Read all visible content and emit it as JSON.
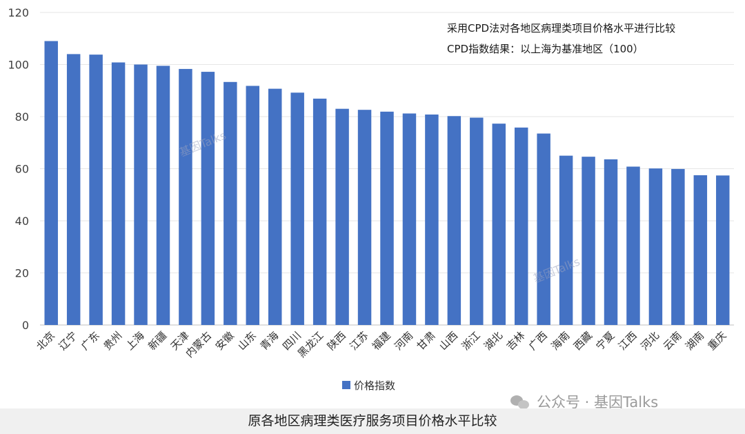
{
  "chart_data": {
    "type": "bar",
    "categories": [
      "北京",
      "辽宁",
      "广东",
      "贵州",
      "上海",
      "新疆",
      "天津",
      "内蒙古",
      "安徽",
      "山东",
      "青海",
      "四川",
      "黑龙江",
      "陕西",
      "江苏",
      "福建",
      "河南",
      "甘肃",
      "山西",
      "浙江",
      "湖北",
      "吉林",
      "广西",
      "海南",
      "西藏",
      "宁夏",
      "江西",
      "河北",
      "云南",
      "湖南",
      "重庆"
    ],
    "series": [
      {
        "name": "价格指数",
        "values": [
          109,
          104,
          103.8,
          100.8,
          100,
          99.5,
          98.3,
          97.2,
          93.3,
          91.8,
          90.7,
          89.2,
          86.9,
          83,
          82.6,
          81.9,
          81.2,
          80.8,
          80.2,
          79.6,
          77.3,
          75.8,
          73.5,
          65,
          64.6,
          63.6,
          60.8,
          60.1,
          59.9,
          57.5,
          57.4
        ],
        "color": "#4472c4"
      }
    ],
    "ylim": [
      0,
      120
    ],
    "yticks": [
      0,
      20,
      40,
      60,
      80,
      100,
      120
    ],
    "grid": true,
    "legend": "bottom",
    "annotations": [
      "采用CPD法对各地区病理类项目价格水平进行比较",
      "CPD指数结果：以上海为基准地区（100）"
    ],
    "watermarks": [
      "基因Talks",
      "基因Talks"
    ]
  },
  "caption": "原各地区病理类医疗服务项目价格水平比较",
  "brand": "公众号 · 基因Talks",
  "brand_icon": "wechat-icon"
}
